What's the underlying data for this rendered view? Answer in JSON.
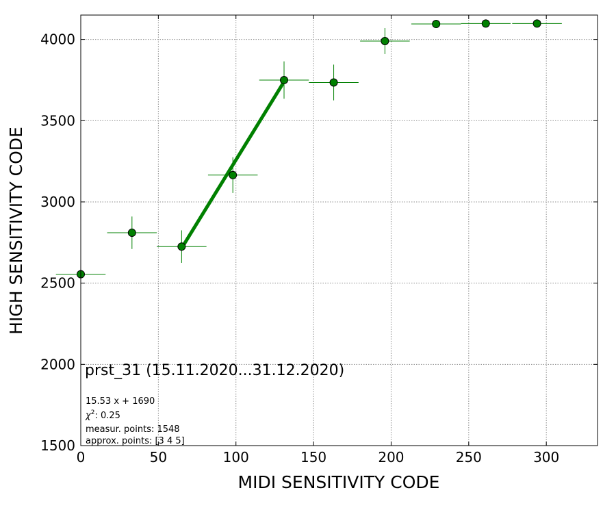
{
  "chart_data": {
    "type": "scatter",
    "xlabel": "MIDI SENSITIVITY CODE",
    "ylabel": "HIGH SENSITIVITY CODE",
    "xlim": [
      0,
      333
    ],
    "ylim": [
      1500,
      4150
    ],
    "xticks": [
      0,
      50,
      100,
      150,
      200,
      250,
      300
    ],
    "yticks": [
      1500,
      2000,
      2500,
      3000,
      3500,
      4000
    ],
    "grid": true,
    "marker_color": "#008000",
    "marker_edge_color": "#000000",
    "errorbar_color": "#008000",
    "fit_color": "#008000",
    "points": [
      {
        "x": 0,
        "y": 2555,
        "xerr": 16,
        "yerr": 0
      },
      {
        "x": 33,
        "y": 2810,
        "xerr": 16,
        "yerr": 100
      },
      {
        "x": 65,
        "y": 2725,
        "xerr": 16,
        "yerr": 100
      },
      {
        "x": 98,
        "y": 3165,
        "xerr": 16,
        "yerr": 110
      },
      {
        "x": 131,
        "y": 3750,
        "xerr": 16,
        "yerr": 115
      },
      {
        "x": 163,
        "y": 3735,
        "xerr": 16,
        "yerr": 110
      },
      {
        "x": 196,
        "y": 3990,
        "xerr": 16,
        "yerr": 80
      },
      {
        "x": 229,
        "y": 4095,
        "xerr": 16,
        "yerr": 0
      },
      {
        "x": 261,
        "y": 4098,
        "xerr": 16,
        "yerr": 0
      },
      {
        "x": 294,
        "y": 4098,
        "xerr": 16,
        "yerr": 0
      }
    ],
    "fit": {
      "x": [
        65,
        131
      ],
      "y": [
        2715,
        3740
      ]
    },
    "annotations": {
      "title": "prst_31 (15.11.2020...31.12.2020)",
      "formula": "15.53 x + 1690",
      "chi_symbol": "χ",
      "chi_exp": "2",
      "chi_value": ": 0.25",
      "measur": "measur. points: 1548",
      "approx": "approx. points: [3 4 5]"
    }
  }
}
